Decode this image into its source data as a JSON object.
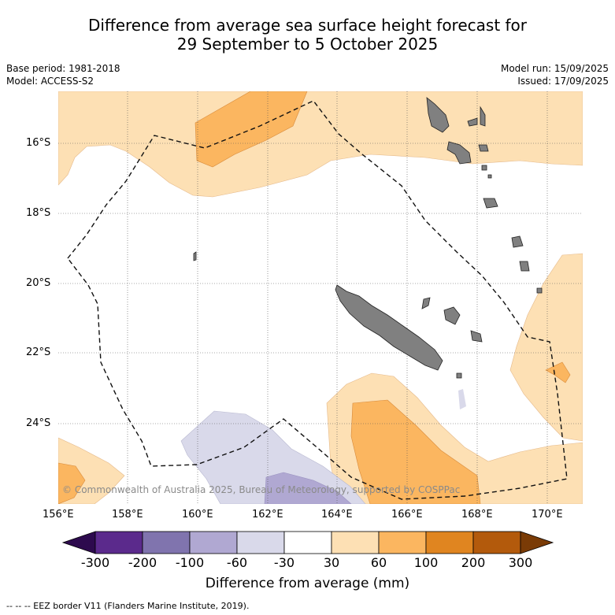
{
  "title_line1": "Difference from average sea surface height forecast for",
  "title_line2": "29 September to 5 October 2025",
  "base_period": "Base period: 1981-2018",
  "model": "Model: ACCESS-S2",
  "model_run": "Model run: 15/09/2025",
  "issued": "Issued: 17/09/2025",
  "lat_labels": [
    "16°S",
    "18°S",
    "20°S",
    "22°S",
    "24°S"
  ],
  "lon_labels": [
    "156°E",
    "158°E",
    "160°E",
    "162°E",
    "164°E",
    "166°E",
    "168°E",
    "170°E"
  ],
  "copyright": "© Commonwealth of Australia 2025, Bureau of Meteorology, supported by COSPPac",
  "colorbar": {
    "ticks": [
      "-300",
      "-200",
      "-100",
      "-60",
      "-30",
      "30",
      "60",
      "100",
      "200",
      "300"
    ],
    "label": "Difference from average (mm)",
    "colors": [
      "#2d0a4e",
      "#5b2a8c",
      "#8074ae",
      "#b0a8d2",
      "#d9d9ea",
      "#ffffff",
      "#fde0b4",
      "#fbb660",
      "#e08520",
      "#b35a0c",
      "#7a3b06"
    ]
  },
  "legend_eez": "--  --  -- EEZ border V11 (Flanders Marine Institute, 2019)."
}
